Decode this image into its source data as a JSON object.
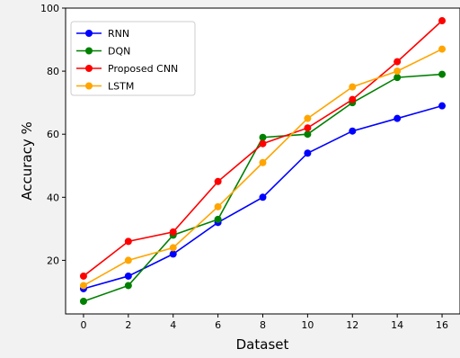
{
  "chart_data": {
    "type": "line",
    "xlabel": "Dataset",
    "ylabel": "Accuracy %",
    "x": [
      0,
      2,
      4,
      6,
      8,
      10,
      12,
      14,
      16
    ],
    "xlim": [
      -0.8,
      16.8
    ],
    "ylim": [
      3,
      100
    ],
    "xticks": [
      0,
      2,
      4,
      6,
      8,
      10,
      12,
      14,
      16
    ],
    "yticks": [
      20,
      40,
      60,
      80,
      100
    ],
    "grid": false,
    "legend_position": "top-left",
    "series": [
      {
        "name": "RNN",
        "color": "#0000ff",
        "values": [
          11,
          15,
          22,
          32,
          40,
          54,
          61,
          65,
          69
        ]
      },
      {
        "name": "DQN",
        "color": "#008000",
        "values": [
          7,
          12,
          28,
          33,
          59,
          60,
          70,
          78,
          79
        ]
      },
      {
        "name": "Proposed CNN",
        "color": "#ff0000",
        "values": [
          15,
          26,
          29,
          45,
          57,
          62,
          71,
          83,
          96
        ]
      },
      {
        "name": "LSTM",
        "color": "#ffa500",
        "values": [
          12,
          20,
          24,
          37,
          51,
          65,
          75,
          80,
          87
        ]
      }
    ]
  }
}
